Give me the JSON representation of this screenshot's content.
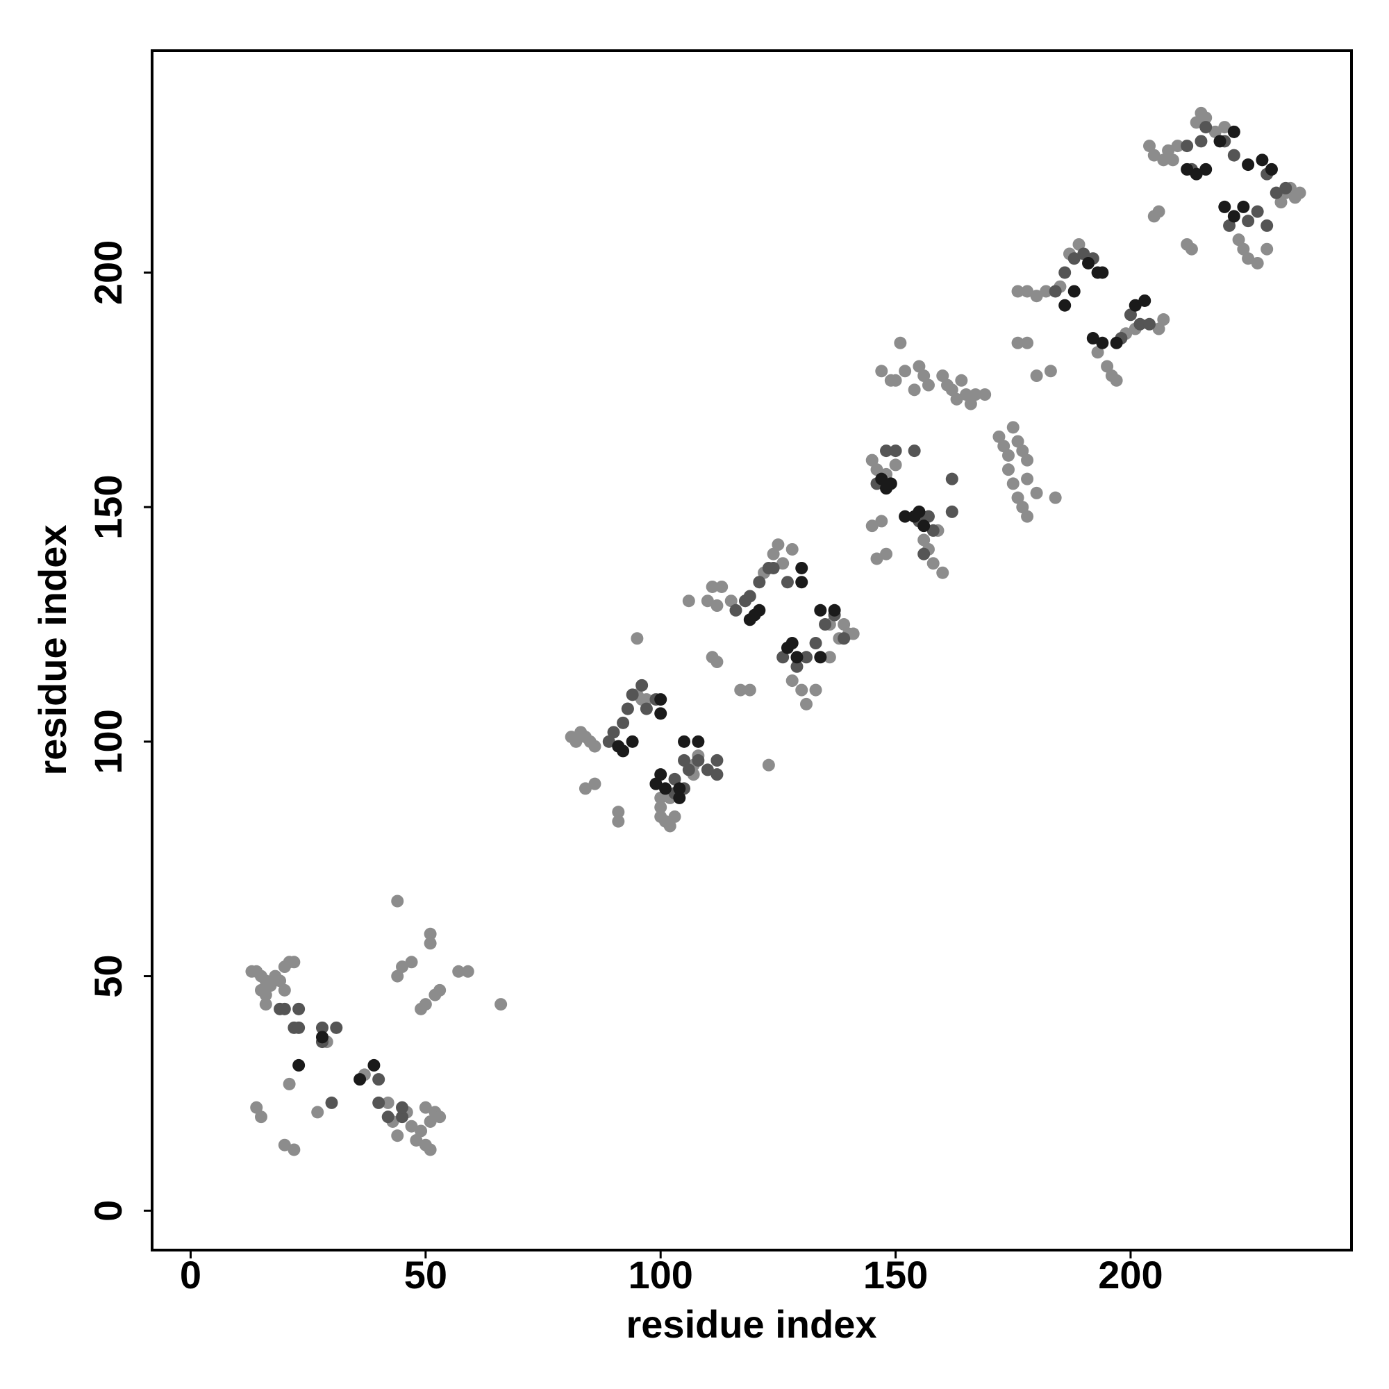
{
  "chart_data": {
    "type": "scatter",
    "xlabel": "residue index",
    "ylabel": "residue index",
    "xlim": [
      -8.2,
      247
    ],
    "ylim": [
      -8.4,
      247.3
    ],
    "xticks": [
      0,
      50,
      100,
      150,
      200
    ],
    "yticks": [
      0,
      50,
      100,
      150,
      200
    ],
    "series": [
      {
        "color": "#8c8c8c",
        "x": [
          13,
          14,
          15,
          16,
          17,
          15,
          16,
          18,
          19,
          20,
          21,
          22,
          20,
          16,
          14,
          15,
          20,
          22,
          21,
          27,
          42,
          43,
          44,
          46,
          47,
          48,
          49,
          50,
          51,
          51,
          52,
          53,
          50,
          44,
          44,
          45,
          47,
          49,
          50,
          52,
          53,
          57,
          59,
          66,
          51,
          51,
          37,
          29,
          81,
          82,
          83,
          84,
          85,
          86,
          84,
          86,
          91,
          91,
          95,
          96,
          97,
          93,
          99,
          100,
          100,
          100,
          101,
          102,
          103,
          102,
          107,
          107,
          95,
          123,
          108,
          111,
          113,
          110,
          112,
          115,
          118,
          111,
          112,
          117,
          119,
          124,
          125,
          126,
          128,
          122,
          128,
          130,
          131,
          133,
          136,
          138,
          139,
          140,
          141,
          136,
          106,
          145,
          146,
          148,
          150,
          145,
          147,
          146,
          148,
          152,
          155,
          156,
          157,
          154,
          150,
          151,
          160,
          161,
          162,
          163,
          164,
          165,
          166,
          167,
          169,
          157,
          158,
          160,
          156,
          159,
          172,
          173,
          174,
          175,
          176,
          177,
          178,
          174,
          175,
          176,
          177,
          178,
          180,
          184,
          178,
          147,
          149,
          176,
          178,
          180,
          182,
          176,
          178,
          180,
          183,
          185,
          193,
          195,
          196,
          197,
          199,
          201,
          206,
          207,
          204,
          205,
          207,
          208,
          210,
          209,
          205,
          206,
          212,
          213,
          214,
          215,
          216,
          218,
          220,
          222,
          223,
          224,
          225,
          227,
          229,
          232,
          233,
          234,
          235,
          236,
          187,
          189
        ],
        "values": [
          51,
          51,
          50,
          49,
          48,
          47,
          46,
          50,
          49,
          52,
          53,
          53,
          47,
          44,
          22,
          20,
          14,
          13,
          27,
          21,
          23,
          19,
          16,
          21,
          18,
          15,
          17,
          14,
          13,
          19,
          21,
          20,
          22,
          66,
          50,
          52,
          53,
          43,
          44,
          46,
          47,
          51,
          51,
          44,
          59,
          57,
          29,
          36,
          101,
          100,
          102,
          101,
          100,
          99,
          90,
          91,
          83,
          85,
          110,
          109,
          109,
          107,
          91,
          88,
          86,
          84,
          83,
          82,
          84,
          88,
          93,
          95,
          122,
          95,
          97,
          133,
          133,
          130,
          129,
          130,
          130,
          118,
          117,
          111,
          111,
          140,
          142,
          138,
          141,
          136,
          113,
          111,
          108,
          111,
          118,
          122,
          125,
          123,
          123,
          125,
          130,
          160,
          158,
          157,
          159,
          146,
          147,
          139,
          140,
          179,
          180,
          178,
          176,
          175,
          177,
          185,
          178,
          176,
          175,
          173,
          177,
          174,
          172,
          174,
          174,
          141,
          138,
          136,
          143,
          145,
          165,
          163,
          161,
          167,
          164,
          162,
          160,
          158,
          155,
          152,
          150,
          148,
          153,
          152,
          156,
          179,
          177,
          196,
          196,
          195,
          196,
          185,
          185,
          178,
          179,
          197,
          183,
          180,
          178,
          177,
          187,
          188,
          188,
          190,
          227,
          225,
          224,
          226,
          227,
          224,
          212,
          213,
          206,
          205,
          232,
          234,
          233,
          230,
          231,
          230,
          207,
          205,
          203,
          202,
          205,
          215,
          217,
          218,
          216,
          217,
          204,
          206
        ]
      },
      {
        "color": "#555555",
        "x": [
          19,
          20,
          23,
          22,
          23,
          28,
          31,
          28,
          40,
          42,
          45,
          45,
          40,
          30,
          92,
          93,
          94,
          96,
          97,
          99,
          105,
          106,
          108,
          110,
          112,
          112,
          105,
          103,
          103,
          89,
          90,
          116,
          118,
          121,
          123,
          124,
          127,
          119,
          126,
          129,
          131,
          133,
          135,
          137,
          139,
          148,
          150,
          146,
          157,
          158,
          154,
          162,
          162,
          155,
          156,
          186,
          188,
          190,
          192,
          184,
          198,
          200,
          202,
          204,
          213,
          215,
          216,
          220,
          222,
          225,
          227,
          229,
          231,
          233,
          229,
          212,
          221
        ],
        "values": [
          43,
          43,
          43,
          39,
          39,
          39,
          39,
          36,
          23,
          20,
          20,
          22,
          28,
          23,
          104,
          107,
          110,
          112,
          107,
          109,
          96,
          94,
          96,
          94,
          93,
          96,
          90,
          92,
          89,
          100,
          102,
          128,
          130,
          134,
          137,
          137,
          134,
          131,
          118,
          116,
          118,
          121,
          125,
          127,
          122,
          162,
          162,
          155,
          148,
          145,
          162,
          156,
          149,
          147,
          140,
          200,
          203,
          204,
          203,
          196,
          186,
          191,
          189,
          189,
          222,
          228,
          231,
          228,
          225,
          211,
          213,
          210,
          217,
          218,
          221,
          227,
          210
        ]
      },
      {
        "color": "#1a1a1a",
        "x": [
          23,
          36,
          39,
          28,
          91,
          92,
          94,
          100,
          100,
          99,
          100,
          101,
          105,
          108,
          104,
          104,
          119,
          120,
          121,
          127,
          128,
          129,
          130,
          130,
          134,
          137,
          134,
          147,
          148,
          149,
          154,
          155,
          156,
          152,
          186,
          188,
          191,
          193,
          194,
          192,
          194,
          197,
          201,
          203,
          212,
          214,
          216,
          219,
          222,
          220,
          222,
          224,
          228,
          230,
          225
        ],
        "values": [
          31,
          28,
          31,
          37,
          99,
          98,
          100,
          106,
          109,
          91,
          93,
          90,
          100,
          100,
          88,
          90,
          126,
          127,
          128,
          120,
          121,
          118,
          137,
          134,
          128,
          128,
          118,
          156,
          154,
          155,
          148,
          149,
          146,
          148,
          193,
          196,
          202,
          200,
          200,
          186,
          185,
          185,
          193,
          194,
          222,
          221,
          222,
          228,
          230,
          214,
          212,
          214,
          224,
          222,
          223
        ]
      }
    ]
  }
}
